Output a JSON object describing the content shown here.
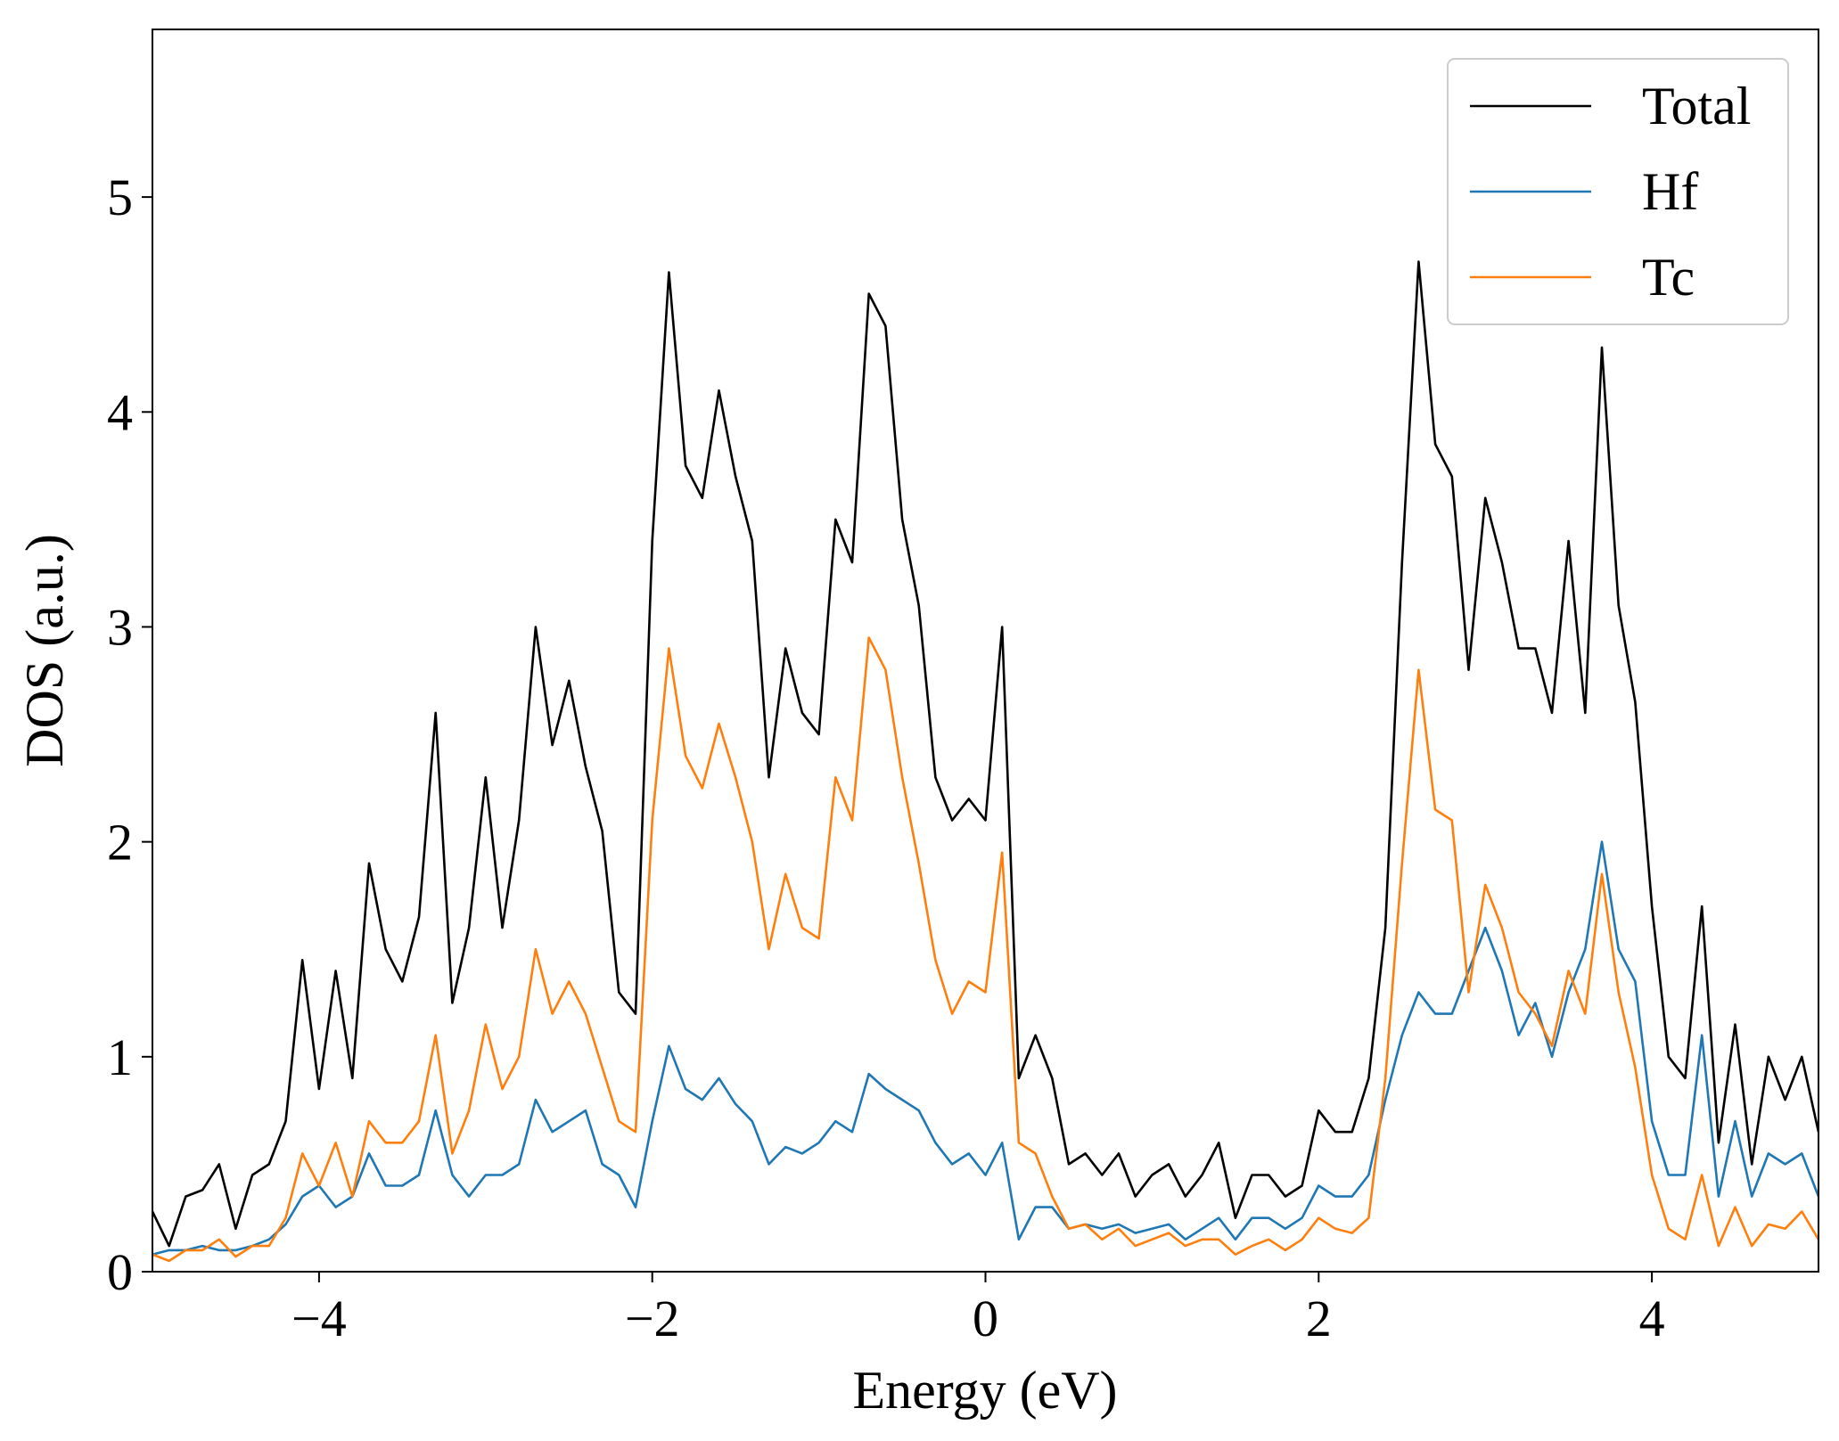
{
  "chart_data": {
    "type": "line",
    "xlabel": "Energy (eV)",
    "ylabel": "DOS (a.u.)",
    "xlim": [
      -5,
      5
    ],
    "ylim": [
      0,
      5.78
    ],
    "xticks": [
      {
        "value": -4,
        "label": "−4"
      },
      {
        "value": -2,
        "label": "−2"
      },
      0,
      2,
      4
    ],
    "yticks": [
      0,
      1,
      2,
      3,
      4,
      5
    ],
    "legend": "upper right",
    "grid": false,
    "x": [
      -5.0,
      -4.9,
      -4.8,
      -4.7,
      -4.6,
      -4.5,
      -4.4,
      -4.3,
      -4.2,
      -4.1,
      -4.0,
      -3.9,
      -3.8,
      -3.7,
      -3.6,
      -3.5,
      -3.4,
      -3.3,
      -3.2,
      -3.1,
      -3.0,
      -2.9,
      -2.8,
      -2.7,
      -2.6,
      -2.5,
      -2.4,
      -2.3,
      -2.2,
      -2.1,
      -2.0,
      -1.9,
      -1.8,
      -1.7,
      -1.6,
      -1.5,
      -1.4,
      -1.3,
      -1.2,
      -1.1,
      -1.0,
      -0.9,
      -0.8,
      -0.7,
      -0.6,
      -0.5,
      -0.4,
      -0.3,
      -0.2,
      -0.1,
      0.0,
      0.1,
      0.2,
      0.3,
      0.4,
      0.5,
      0.6,
      0.7,
      0.8,
      0.9,
      1.0,
      1.1,
      1.2,
      1.3,
      1.4,
      1.5,
      1.6,
      1.7,
      1.8,
      1.9,
      2.0,
      2.1,
      2.2,
      2.3,
      2.4,
      2.5,
      2.6,
      2.7,
      2.8,
      2.9,
      3.0,
      3.1,
      3.2,
      3.3,
      3.4,
      3.5,
      3.6,
      3.7,
      3.8,
      3.9,
      4.0,
      4.1,
      4.2,
      4.3,
      4.4,
      4.5,
      4.6,
      4.7,
      4.8,
      4.9,
      5.0
    ],
    "series": [
      {
        "name": "Total",
        "color": "#000000",
        "values": [
          0.28,
          0.12,
          0.35,
          0.38,
          0.5,
          0.2,
          0.45,
          0.5,
          0.7,
          1.45,
          0.85,
          1.4,
          0.9,
          1.9,
          1.5,
          1.35,
          1.65,
          2.6,
          1.25,
          1.6,
          2.3,
          1.6,
          2.1,
          3.0,
          2.45,
          2.75,
          2.35,
          2.05,
          1.3,
          1.2,
          3.4,
          4.65,
          3.75,
          3.6,
          4.1,
          3.7,
          3.4,
          2.3,
          2.9,
          2.6,
          2.5,
          3.5,
          3.3,
          4.55,
          4.4,
          3.5,
          3.1,
          2.3,
          2.1,
          2.2,
          2.1,
          3.0,
          0.9,
          1.1,
          0.9,
          0.5,
          0.55,
          0.45,
          0.55,
          0.35,
          0.45,
          0.5,
          0.35,
          0.45,
          0.6,
          0.25,
          0.45,
          0.45,
          0.35,
          0.4,
          0.75,
          0.65,
          0.65,
          0.9,
          1.6,
          3.3,
          4.7,
          3.85,
          3.7,
          2.8,
          3.6,
          3.3,
          2.9,
          2.9,
          2.6,
          3.4,
          2.6,
          4.3,
          3.1,
          2.65,
          1.7,
          1.0,
          0.9,
          1.7,
          0.6,
          1.15,
          0.5,
          1.0,
          0.8,
          1.0,
          0.65
        ]
      },
      {
        "name": "Hf",
        "color": "#1f77b4",
        "values": [
          0.08,
          0.1,
          0.1,
          0.12,
          0.1,
          0.1,
          0.12,
          0.15,
          0.22,
          0.35,
          0.4,
          0.3,
          0.35,
          0.55,
          0.4,
          0.4,
          0.45,
          0.75,
          0.45,
          0.35,
          0.45,
          0.45,
          0.5,
          0.8,
          0.65,
          0.7,
          0.75,
          0.5,
          0.45,
          0.3,
          0.7,
          1.05,
          0.85,
          0.8,
          0.9,
          0.78,
          0.7,
          0.5,
          0.58,
          0.55,
          0.6,
          0.7,
          0.65,
          0.92,
          0.85,
          0.8,
          0.75,
          0.6,
          0.5,
          0.55,
          0.45,
          0.6,
          0.15,
          0.3,
          0.3,
          0.2,
          0.22,
          0.2,
          0.22,
          0.18,
          0.2,
          0.22,
          0.15,
          0.2,
          0.25,
          0.15,
          0.25,
          0.25,
          0.2,
          0.25,
          0.4,
          0.35,
          0.35,
          0.45,
          0.8,
          1.1,
          1.3,
          1.2,
          1.2,
          1.4,
          1.6,
          1.4,
          1.1,
          1.25,
          1.0,
          1.3,
          1.5,
          2.0,
          1.5,
          1.35,
          0.7,
          0.45,
          0.45,
          1.1,
          0.35,
          0.7,
          0.35,
          0.55,
          0.5,
          0.55,
          0.35
        ]
      },
      {
        "name": "Tc",
        "color": "#ff7f0e",
        "values": [
          0.08,
          0.05,
          0.1,
          0.1,
          0.15,
          0.07,
          0.12,
          0.12,
          0.25,
          0.55,
          0.4,
          0.6,
          0.35,
          0.7,
          0.6,
          0.6,
          0.7,
          1.1,
          0.55,
          0.75,
          1.15,
          0.85,
          1.0,
          1.5,
          1.2,
          1.35,
          1.2,
          0.95,
          0.7,
          0.65,
          2.1,
          2.9,
          2.4,
          2.25,
          2.55,
          2.3,
          2.0,
          1.5,
          1.85,
          1.6,
          1.55,
          2.3,
          2.1,
          2.95,
          2.8,
          2.3,
          1.9,
          1.45,
          1.2,
          1.35,
          1.3,
          1.95,
          0.6,
          0.55,
          0.35,
          0.2,
          0.22,
          0.15,
          0.2,
          0.12,
          0.15,
          0.18,
          0.12,
          0.15,
          0.15,
          0.08,
          0.12,
          0.15,
          0.1,
          0.15,
          0.25,
          0.2,
          0.18,
          0.25,
          0.9,
          1.9,
          2.8,
          2.15,
          2.1,
          1.3,
          1.8,
          1.6,
          1.3,
          1.2,
          1.05,
          1.4,
          1.2,
          1.85,
          1.3,
          0.95,
          0.45,
          0.2,
          0.15,
          0.45,
          0.12,
          0.3,
          0.12,
          0.22,
          0.2,
          0.28,
          0.15
        ]
      }
    ]
  }
}
